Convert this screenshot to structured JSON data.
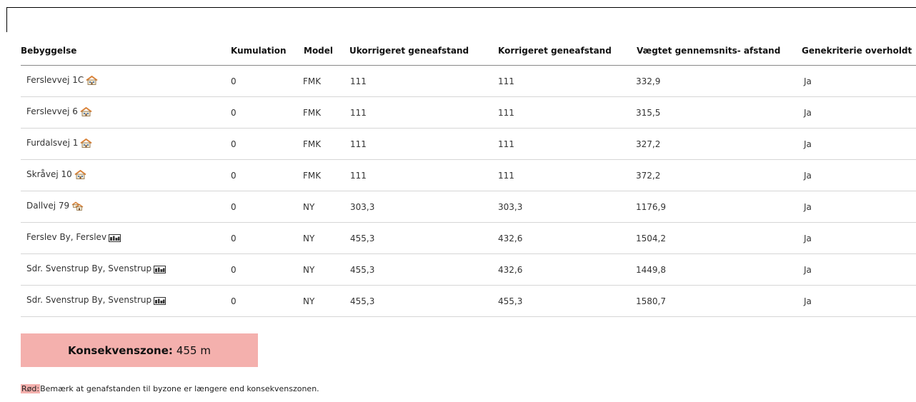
{
  "table": {
    "headers": [
      "Bebyggelse",
      "Kumulation",
      "Model",
      "Ukorrigeret geneafstand",
      "Korrigeret geneafstand",
      "Vægtet gennemsnits- afstand",
      "Genekriterie overholdt"
    ],
    "rows": [
      {
        "name": "Ferslevvej 1C",
        "icon": "house-icon",
        "kumulation": "0",
        "model": "FMK",
        "ukorr": "111",
        "korr": "111",
        "vaegtet": "332,9",
        "ok": "Ja"
      },
      {
        "name": "Ferslevvej 6",
        "icon": "house-icon",
        "kumulation": "0",
        "model": "FMK",
        "ukorr": "111",
        "korr": "111",
        "vaegtet": "315,5",
        "ok": "Ja"
      },
      {
        "name": "Furdalsvej 1",
        "icon": "house-icon",
        "kumulation": "0",
        "model": "FMK",
        "ukorr": "111",
        "korr": "111",
        "vaegtet": "327,2",
        "ok": "Ja"
      },
      {
        "name": "Skråvej 10",
        "icon": "house-icon",
        "kumulation": "0",
        "model": "FMK",
        "ukorr": "111",
        "korr": "111",
        "vaegtet": "372,2",
        "ok": "Ja"
      },
      {
        "name": "Dallvej 79",
        "icon": "houses-icon",
        "kumulation": "0",
        "model": "NY",
        "ukorr": "303,3",
        "korr": "303,3",
        "vaegtet": "1176,9",
        "ok": "Ja"
      },
      {
        "name": "Ferslev By, Ferslev",
        "icon": "town-icon",
        "kumulation": "0",
        "model": "NY",
        "ukorr": "455,3",
        "korr": "432,6",
        "vaegtet": "1504,2",
        "ok": "Ja"
      },
      {
        "name": "Sdr. Svenstrup By, Svenstrup",
        "icon": "town-icon",
        "kumulation": "0",
        "model": "NY",
        "ukorr": "455,3",
        "korr": "432,6",
        "vaegtet": "1449,8",
        "ok": "Ja"
      },
      {
        "name": "Sdr. Svenstrup By, Svenstrup",
        "icon": "town-icon",
        "kumulation": "0",
        "model": "NY",
        "ukorr": "455,3",
        "korr": "455,3",
        "vaegtet": "1580,7",
        "ok": "Ja"
      }
    ]
  },
  "zone": {
    "label": "Konsekvenszone:",
    "value": "455 m"
  },
  "note": {
    "tag": "Rød:",
    "text": "Bemærk at genafstanden til byzone er længere end konsekvenszonen."
  },
  "colors": {
    "highlight": "#f4b0ad",
    "roof": "#d9833a"
  }
}
